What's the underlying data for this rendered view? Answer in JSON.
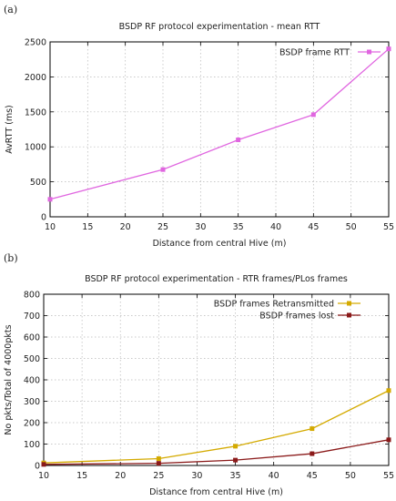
{
  "chart_data": [
    {
      "panel_label": "(a)",
      "type": "line",
      "title": "BSDP RF protocol experimentation - mean RTT",
      "xlabel": "Distance from central Hive (m)",
      "ylabel": "AvRTT (ms)",
      "xlim": [
        10,
        55
      ],
      "ylim": [
        0,
        2500
      ],
      "xticks": [
        10,
        15,
        20,
        25,
        30,
        35,
        40,
        45,
        50,
        55
      ],
      "yticks": [
        0,
        500,
        1000,
        1500,
        2000,
        2500
      ],
      "grid": true,
      "legend_position": "top-right",
      "x": [
        10,
        25,
        35,
        45,
        55
      ],
      "series": [
        {
          "name": "BSDP frame RTT",
          "color": "#e066e0",
          "values": [
            250,
            675,
            1100,
            1460,
            2400
          ]
        }
      ]
    },
    {
      "panel_label": "(b)",
      "type": "line",
      "title": "BSDP RF protocol experimentation - RTR frames/PLos frames",
      "xlabel": "Distance from central Hive (m)",
      "ylabel": "No pkts/Total of 4000pkts",
      "xlim": [
        10,
        55
      ],
      "ylim": [
        0,
        800
      ],
      "xticks": [
        10,
        15,
        20,
        25,
        30,
        35,
        40,
        45,
        50,
        55
      ],
      "yticks": [
        0,
        100,
        200,
        300,
        400,
        500,
        600,
        700,
        800
      ],
      "grid": true,
      "legend_position": "top-right",
      "x": [
        10,
        25,
        35,
        45,
        55
      ],
      "series": [
        {
          "name": "BSDP frames Retransmitted",
          "color": "#d4aa00",
          "values": [
            12,
            32,
            90,
            172,
            350
          ]
        },
        {
          "name": "BSDP frames lost",
          "color": "#8b1a1a",
          "values": [
            5,
            10,
            25,
            55,
            120
          ]
        }
      ]
    }
  ]
}
